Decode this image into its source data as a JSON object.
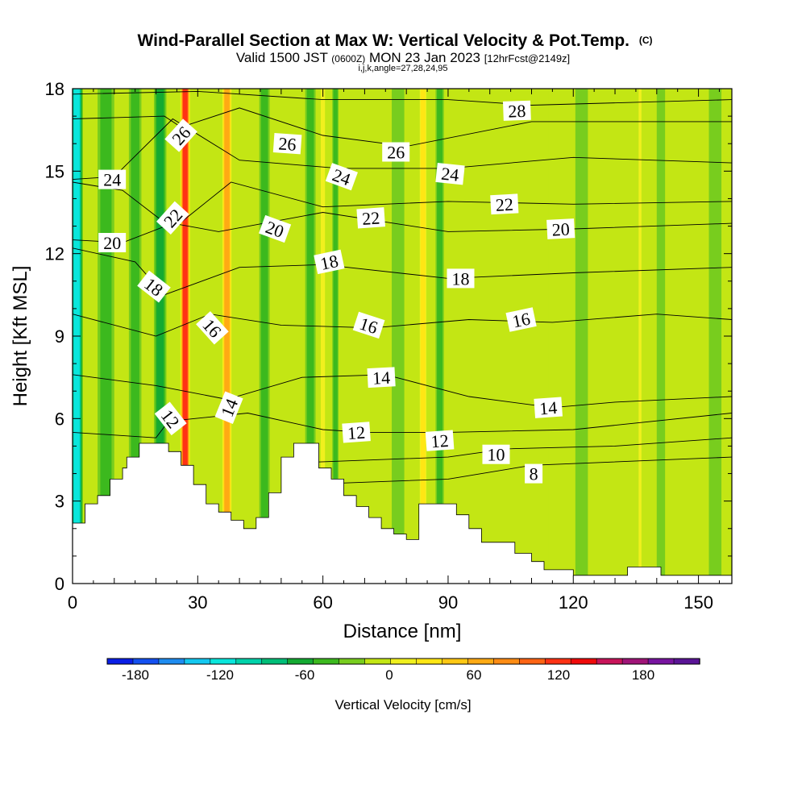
{
  "chart_data": {
    "type": "heatmap",
    "title": "Wind-Parallel Section at Max W: Vertical Velocity & Pot.Temp.",
    "title_mark": "(C)",
    "subtitle_parts": [
      "Valid 1500 JST",
      "(0600Z)",
      "MON 23 Jan 2023",
      "[12hrFcst@2149z]"
    ],
    "subtitle2": "i,j,k,angle=27,28,24,95",
    "xlabel": "Distance [nm]",
    "ylabel": "Height [Kft MSL]",
    "xlim": [
      0,
      158
    ],
    "ylim": [
      0,
      18
    ],
    "xticks": [
      0,
      30,
      60,
      90,
      120,
      150
    ],
    "yticks": [
      0,
      3,
      6,
      9,
      12,
      15,
      18
    ],
    "colorbar": {
      "label": "Vertical Velocity [cm/s]",
      "tick_values": [
        -180,
        -120,
        -60,
        0,
        60,
        120,
        180
      ],
      "tick_labels": [
        "-180",
        "-120",
        "-60",
        "0",
        "60",
        "120",
        "180"
      ],
      "bounds": [
        -200,
        220
      ],
      "interval": 20,
      "colors": [
        "#0a1ee6",
        "#1450f0",
        "#1e8cf0",
        "#14c8f0",
        "#0ae6dc",
        "#00d2aa",
        "#00be78",
        "#14aa32",
        "#3cb91e",
        "#78cd1e",
        "#c3e614",
        "#f0f01e",
        "#ffe614",
        "#ffc814",
        "#ffaa14",
        "#ff8c14",
        "#ff6414",
        "#ff3214",
        "#f00a0a",
        "#c8145a",
        "#a01478",
        "#7814a0",
        "#5a1496"
      ]
    },
    "vertical_velocity_bands": [
      {
        "x": 1,
        "w": 3,
        "v": -110
      },
      {
        "x": 8,
        "w": 4,
        "v": -35
      },
      {
        "x": 15,
        "w": 3,
        "v": -35
      },
      {
        "x": 21,
        "w": 3,
        "v": -50
      },
      {
        "x": 27,
        "w": 2.5,
        "v": 150
      },
      {
        "x": 37,
        "w": 2.5,
        "v": 95
      },
      {
        "x": 46,
        "w": 2.5,
        "v": -40
      },
      {
        "x": 57,
        "w": 2.5,
        "v": -35
      },
      {
        "x": 60,
        "w": 1.5,
        "v": 30
      },
      {
        "x": 63,
        "w": 1.5,
        "v": -45
      },
      {
        "x": 78,
        "w": 3,
        "v": -25
      },
      {
        "x": 84,
        "w": 2,
        "v": 55
      },
      {
        "x": 88,
        "w": 2,
        "v": -30
      },
      {
        "x": 100,
        "w": 3,
        "v": 25
      },
      {
        "x": 112,
        "w": 4,
        "v": 25
      },
      {
        "x": 122,
        "w": 3,
        "v": -28
      },
      {
        "x": 136,
        "w": 1,
        "v": 30
      },
      {
        "x": 141,
        "w": 2,
        "v": -25
      },
      {
        "x": 149,
        "w": 2,
        "v": 20
      },
      {
        "x": 154,
        "w": 3,
        "v": -25
      }
    ],
    "terrain": {
      "x": [
        0,
        3,
        3,
        6,
        6,
        9,
        9,
        12,
        12,
        13,
        13,
        16,
        16,
        23,
        23,
        26,
        26,
        29,
        29,
        32,
        32,
        35,
        35,
        38,
        38,
        41,
        41,
        44,
        44,
        47,
        47,
        50,
        50,
        53,
        53,
        59,
        59,
        62,
        62,
        65,
        65,
        68,
        68,
        71,
        71,
        74,
        74,
        77,
        77,
        80,
        80,
        83,
        83,
        92,
        92,
        95,
        95,
        98,
        98,
        106,
        106,
        110,
        110,
        113,
        113,
        120,
        120,
        126,
        126,
        133,
        133,
        141,
        141,
        146,
        146,
        158
      ],
      "y": [
        2.2,
        2.2,
        2.9,
        2.9,
        3.2,
        3.2,
        3.8,
        3.8,
        4.2,
        4.2,
        4.6,
        4.6,
        5.1,
        5.1,
        4.8,
        4.8,
        4.3,
        4.3,
        3.6,
        3.6,
        2.9,
        2.9,
        2.6,
        2.6,
        2.3,
        2.3,
        2.0,
        2.0,
        2.4,
        2.4,
        3.3,
        3.3,
        4.6,
        4.6,
        5.1,
        5.1,
        4.2,
        4.2,
        3.8,
        3.8,
        3.2,
        3.2,
        2.8,
        2.8,
        2.4,
        2.4,
        2.0,
        2.0,
        1.8,
        1.8,
        1.6,
        1.6,
        2.9,
        2.9,
        2.5,
        2.5,
        2.0,
        2.0,
        1.5,
        1.5,
        1.1,
        1.1,
        0.8,
        0.8,
        0.5,
        0.5,
        0.3,
        0.3,
        0.3,
        0.3,
        0.6,
        0.6,
        0.3,
        0.3,
        0.3,
        0.3
      ]
    },
    "theta_contours": [
      {
        "value": 8,
        "x": [
          55,
          90,
          110,
          158
        ],
        "y": [
          3.6,
          3.8,
          4.3,
          4.6
        ]
      },
      {
        "value": 10,
        "x": [
          55,
          90,
          104,
          130,
          158
        ],
        "y": [
          4.4,
          4.6,
          4.9,
          5.0,
          5.3
        ]
      },
      {
        "value": 12,
        "x": [
          0,
          20,
          23,
          42,
          60,
          70,
          90,
          120,
          158
        ],
        "y": [
          5.5,
          5.3,
          5.9,
          6.2,
          5.6,
          5.5,
          5.5,
          5.6,
          6.2
        ]
      },
      {
        "value": 14,
        "x": [
          0,
          20,
          37,
          55,
          75,
          95,
          115,
          130,
          158
        ],
        "y": [
          7.6,
          7.2,
          6.7,
          7.5,
          7.6,
          6.8,
          6.4,
          6.6,
          6.8
        ]
      },
      {
        "value": 16,
        "x": [
          0,
          20,
          33,
          50,
          72,
          95,
          115,
          140,
          158
        ],
        "y": [
          9.8,
          9.0,
          9.8,
          9.4,
          9.3,
          9.6,
          9.5,
          9.8,
          9.6
        ]
      },
      {
        "value": 18,
        "x": [
          0,
          15,
          22,
          40,
          60,
          90,
          120,
          158
        ],
        "y": [
          12.2,
          11.7,
          10.5,
          11.5,
          11.6,
          11.1,
          11.3,
          11.5
        ]
      },
      {
        "value": 20,
        "x": [
          0,
          12,
          24,
          35,
          60,
          90,
          120,
          158
        ],
        "y": [
          12.5,
          12.4,
          13.1,
          12.8,
          13.5,
          12.8,
          12.9,
          13.1
        ]
      },
      {
        "value": 22,
        "x": [
          0,
          12,
          24,
          38,
          60,
          90,
          120,
          158
        ],
        "y": [
          14.6,
          14.3,
          12.9,
          14.6,
          13.7,
          13.9,
          13.8,
          13.9
        ]
      },
      {
        "value": 24,
        "x": [
          0,
          10,
          24,
          40,
          64,
          90,
          120,
          158
        ],
        "y": [
          14.7,
          14.8,
          16.9,
          15.4,
          15.1,
          15.1,
          15.5,
          15.3
        ]
      },
      {
        "value": 26,
        "x": [
          0,
          22,
          26,
          40,
          60,
          80,
          110,
          158
        ],
        "y": [
          16.9,
          17.0,
          16.6,
          17.3,
          16.3,
          15.9,
          16.8,
          16.8
        ]
      },
      {
        "value": 28,
        "x": [
          0,
          30,
          60,
          90,
          110,
          158
        ],
        "y": [
          17.8,
          17.9,
          17.6,
          17.6,
          17.4,
          17.6
        ]
      }
    ],
    "contour_labels": [
      {
        "text": "26",
        "x": 26,
        "y": 16.3,
        "angle": -48
      },
      {
        "text": "26",
        "x": 51.5,
        "y": 16.0,
        "angle": 4
      },
      {
        "text": "26",
        "x": 77.5,
        "y": 15.7,
        "angle": 0
      },
      {
        "text": "28",
        "x": 106.5,
        "y": 17.2,
        "angle": -2
      },
      {
        "text": "24",
        "x": 9.5,
        "y": 14.7,
        "angle": 0
      },
      {
        "text": "24",
        "x": 64.5,
        "y": 14.8,
        "angle": 20
      },
      {
        "text": "24",
        "x": 90.5,
        "y": 14.9,
        "angle": 6
      },
      {
        "text": "22",
        "x": 24,
        "y": 13.3,
        "angle": -48
      },
      {
        "text": "22",
        "x": 71.5,
        "y": 13.3,
        "angle": -4
      },
      {
        "text": "22",
        "x": 103.5,
        "y": 13.8,
        "angle": -3
      },
      {
        "text": "20",
        "x": 9.5,
        "y": 12.4,
        "angle": 0
      },
      {
        "text": "20",
        "x": 48.5,
        "y": 12.9,
        "angle": 20
      },
      {
        "text": "20",
        "x": 117,
        "y": 12.9,
        "angle": -3
      },
      {
        "text": "18",
        "x": 19.5,
        "y": 10.8,
        "angle": 38
      },
      {
        "text": "18",
        "x": 61.5,
        "y": 11.7,
        "angle": -12
      },
      {
        "text": "18",
        "x": 93,
        "y": 11.1,
        "angle": 0
      },
      {
        "text": "16",
        "x": 33.5,
        "y": 9.3,
        "angle": 48
      },
      {
        "text": "16",
        "x": 71,
        "y": 9.4,
        "angle": 18
      },
      {
        "text": "16",
        "x": 107.5,
        "y": 9.6,
        "angle": -12
      },
      {
        "text": "14",
        "x": 37.5,
        "y": 6.4,
        "angle": -68
      },
      {
        "text": "14",
        "x": 74,
        "y": 7.5,
        "angle": -3
      },
      {
        "text": "14",
        "x": 114,
        "y": 6.4,
        "angle": -4
      },
      {
        "text": "12",
        "x": 23.5,
        "y": 6.0,
        "angle": 52
      },
      {
        "text": "12",
        "x": 68,
        "y": 5.5,
        "angle": -4
      },
      {
        "text": "12",
        "x": 88,
        "y": 5.2,
        "angle": -4
      },
      {
        "text": "10",
        "x": 101.5,
        "y": 4.7,
        "angle": 0
      },
      {
        "text": "8",
        "x": 110.5,
        "y": 4.0,
        "angle": 0
      }
    ]
  }
}
